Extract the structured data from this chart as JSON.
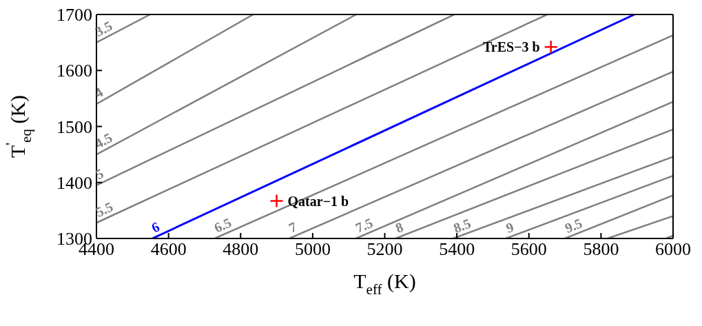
{
  "chart_data": {
    "type": "line",
    "xlabel": "T$_{eff}$ (K)",
    "ylabel": "T$^{'}$$_{eq}$ (K)",
    "xlim": [
      4400,
      6000
    ],
    "ylim": [
      1300,
      1700
    ],
    "xticks": [
      4400,
      4600,
      4800,
      5000,
      5200,
      5400,
      5600,
      5800,
      6000
    ],
    "yticks": [
      1300,
      1400,
      1500,
      1600,
      1700
    ],
    "marker": "none",
    "line_style": "solid",
    "series": [
      {
        "name": "3.5",
        "color": "#808080",
        "x": [
          4400,
          4549
        ],
        "values": [
          1650,
          1700
        ]
      },
      {
        "name": "4",
        "color": "#808080",
        "x": [
          4400,
          4835
        ],
        "values": [
          1540,
          1700
        ]
      },
      {
        "name": "4.5",
        "color": "#808080",
        "x": [
          4400,
          5121
        ],
        "values": [
          1450,
          1700
        ]
      },
      {
        "name": "5",
        "color": "#808080",
        "x": [
          4400,
          5393
        ],
        "values": [
          1395,
          1700
        ]
      },
      {
        "name": "5.5",
        "color": "#808080",
        "x": [
          4400,
          5651
        ],
        "values": [
          1328,
          1700
        ]
      },
      {
        "name": "6",
        "color": "#0000ff",
        "x": [
          4555,
          5893
        ],
        "values": [
          1300,
          1700
        ]
      },
      {
        "name": "6.5",
        "color": "#808080",
        "x": [
          4728,
          6000
        ],
        "values": [
          1300,
          1663
        ]
      },
      {
        "name": "7",
        "color": "#808080",
        "x": [
          4935,
          6000
        ],
        "values": [
          1300,
          1598
        ]
      },
      {
        "name": "7.5",
        "color": "#808080",
        "x": [
          5120,
          6000
        ],
        "values": [
          1300,
          1544
        ]
      },
      {
        "name": "8",
        "color": "#808080",
        "x": [
          5230,
          6000
        ],
        "values": [
          1300,
          1495
        ]
      },
      {
        "name": "8.5",
        "color": "#808080",
        "x": [
          5390,
          6000
        ],
        "values": [
          1300,
          1446
        ]
      },
      {
        "name": "9",
        "color": "#808080",
        "x": [
          5536,
          6000
        ],
        "values": [
          1300,
          1412
        ]
      },
      {
        "name": "9.5",
        "color": "#808080",
        "x": [
          5700,
          6000
        ],
        "values": [
          1300,
          1377
        ]
      },
      {
        "color": "#808080",
        "x": [
          5818,
          6000
        ],
        "values": [
          1300,
          1340
        ]
      },
      {
        "color": "#808080",
        "x": [
          5980,
          6000
        ],
        "values": [
          1300,
          1305
        ]
      },
      {
        "type": "scatter",
        "marker": "cross",
        "color": "#ff0000",
        "x": [
          4900,
          5661
        ],
        "values": [
          1367,
          1642
        ]
      }
    ],
    "annotations": [
      {
        "text": "Qatar−1 b",
        "x": 4900,
        "y": 1367
      },
      {
        "text": "TrES−3 b",
        "x": 5661,
        "y": 1642
      }
    ]
  }
}
